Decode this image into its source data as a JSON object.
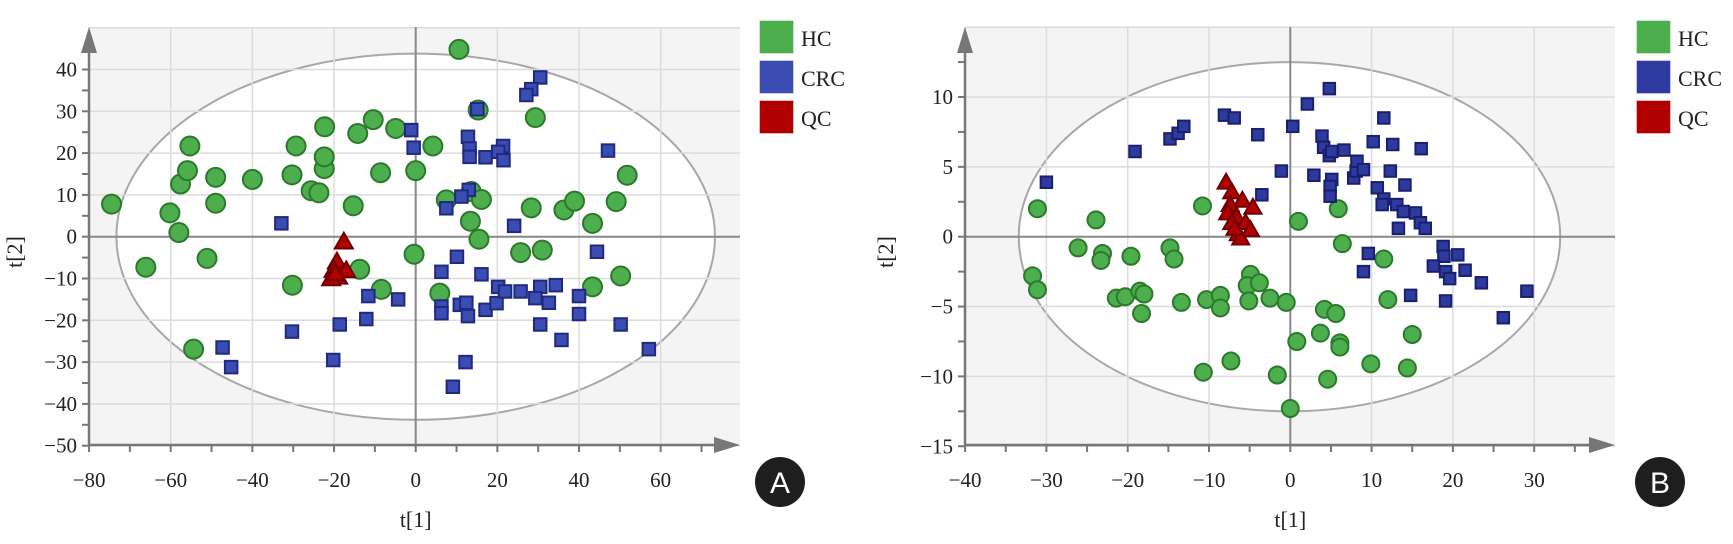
{
  "chart_data": [
    {
      "type": "scatter",
      "panel": "A",
      "xlabel": "t[1]",
      "ylabel": "t[2]",
      "xlim": [
        -80,
        80
      ],
      "ylim": [
        -50,
        50
      ],
      "xticks": [
        -80,
        -60,
        -40,
        -20,
        0,
        20,
        40,
        60
      ],
      "yticks": [
        -50,
        -40,
        -30,
        -20,
        -10,
        0,
        10,
        20,
        30,
        40
      ],
      "grid": true,
      "legend_position": "right-top",
      "ellipse": {
        "center": [
          0,
          0
        ],
        "radii": [
          73.3,
          43.8
        ]
      },
      "series": [
        {
          "name": "HC",
          "marker": "circle",
          "color": "#4cae4c",
          "stroke": "#2b7a2b",
          "points": [
            [
              -74.5,
              7.8
            ],
            [
              -66.1,
              -7.3
            ],
            [
              -60.2,
              5.7
            ],
            [
              -58,
              1
            ],
            [
              -57.6,
              12.6
            ],
            [
              -55.9,
              15.8
            ],
            [
              -55.3,
              21.7
            ],
            [
              -54.4,
              -26.9
            ],
            [
              -51.1,
              -5.2
            ],
            [
              -49,
              14.2
            ],
            [
              -49,
              8
            ],
            [
              -40,
              13.7
            ],
            [
              -30.3,
              14.8
            ],
            [
              -30.2,
              -11.6
            ],
            [
              -29.3,
              21.7
            ],
            [
              -25.6,
              11
            ],
            [
              -23.7,
              10.5
            ],
            [
              -22.4,
              16.3
            ],
            [
              -22.4,
              19.1
            ],
            [
              -22.3,
              26.3
            ],
            [
              -15.3,
              7.4
            ],
            [
              -14.2,
              24.7
            ],
            [
              -13.7,
              -7.8
            ],
            [
              -10.4,
              28
            ],
            [
              -8.6,
              15.3
            ],
            [
              -8.4,
              -12.6
            ],
            [
              10.6,
              44.8
            ],
            [
              -4.9,
              25.9
            ],
            [
              4.2,
              21.7
            ],
            [
              0,
              15.8
            ],
            [
              15.3,
              30.3
            ],
            [
              29.3,
              28.5
            ],
            [
              51.8,
              14.7
            ],
            [
              7.5,
              8.8
            ],
            [
              13.6,
              10.8
            ],
            [
              16.1,
              8.9
            ],
            [
              28.3,
              6.9
            ],
            [
              36.3,
              6.4
            ],
            [
              38.9,
              8.5
            ],
            [
              49.1,
              8.4
            ],
            [
              13.4,
              3.7
            ],
            [
              43.3,
              3.2
            ],
            [
              15.5,
              -0.6
            ],
            [
              -0.4,
              -4.2
            ],
            [
              25.7,
              -3.8
            ],
            [
              31,
              -3.2
            ],
            [
              5.9,
              -13.5
            ],
            [
              43.3,
              -12
            ],
            [
              50.2,
              -9.4
            ]
          ]
        },
        {
          "name": "CRC",
          "marker": "square",
          "color": "#3b4db3",
          "stroke": "#1f2a7e",
          "points": [
            [
              -32.9,
              3.2
            ],
            [
              -11.6,
              -14.2
            ],
            [
              -12.1,
              -19.7
            ],
            [
              -18.6,
              -21
            ],
            [
              -30.3,
              -22.7
            ],
            [
              -47.3,
              -26.5
            ],
            [
              -45.2,
              -31.2
            ],
            [
              -20.2,
              -29.5
            ],
            [
              30.5,
              38.1
            ],
            [
              28.3,
              35.3
            ],
            [
              27.1,
              33.9
            ],
            [
              15.1,
              30.5
            ],
            [
              -1.1,
              25.5
            ],
            [
              -0.5,
              21.3
            ],
            [
              12.8,
              23.9
            ],
            [
              13.2,
              21.1
            ],
            [
              13.2,
              19.1
            ],
            [
              17.1,
              19
            ],
            [
              21.4,
              21.7
            ],
            [
              20.2,
              20.3
            ],
            [
              21.5,
              18.3
            ],
            [
              47.1,
              20.6
            ],
            [
              13,
              11.2
            ],
            [
              11.2,
              9.6
            ],
            [
              7.5,
              6.8
            ],
            [
              24.1,
              2.6
            ],
            [
              44.4,
              -3.6
            ],
            [
              10.1,
              -4.8
            ],
            [
              6.3,
              -8.4
            ],
            [
              16.1,
              -9
            ],
            [
              -4.3,
              -15
            ],
            [
              6.3,
              -16.7
            ],
            [
              6.3,
              -18.3
            ],
            [
              10.8,
              -16.3
            ],
            [
              12.4,
              -15.8
            ],
            [
              12.8,
              -19
            ],
            [
              17.1,
              -17.5
            ],
            [
              19.8,
              -15.9
            ],
            [
              20.2,
              -12
            ],
            [
              21.9,
              -13.1
            ],
            [
              25.7,
              -13.1
            ],
            [
              30.5,
              -12
            ],
            [
              29.3,
              -14.7
            ],
            [
              32.6,
              -15.8
            ],
            [
              34.3,
              -11.6
            ],
            [
              40,
              -14.2
            ],
            [
              40,
              -18.5
            ],
            [
              30.5,
              -21
            ],
            [
              50.2,
              -21
            ],
            [
              35.7,
              -24.7
            ],
            [
              57.1,
              -26.9
            ],
            [
              12.2,
              -30
            ],
            [
              9.1,
              -35.9
            ]
          ]
        },
        {
          "name": "QC",
          "marker": "triangle",
          "color": "#b00000",
          "stroke": "#700000",
          "points": [
            [
              -17.6,
              -1.2
            ],
            [
              -19.3,
              -6
            ],
            [
              -20.1,
              -8
            ],
            [
              -17,
              -8.1
            ],
            [
              -19,
              -9.6
            ],
            [
              -20.7,
              -10
            ],
            [
              -19.6,
              -8.8
            ]
          ]
        }
      ]
    },
    {
      "type": "scatter",
      "panel": "B",
      "xlabel": "t[1]",
      "ylabel": "t[2]",
      "xlim": [
        -40,
        40
      ],
      "ylim": [
        -15,
        15
      ],
      "xticks": [
        -40,
        -30,
        -20,
        -10,
        0,
        10,
        20,
        30
      ],
      "yticks": [
        -15,
        -10,
        -5,
        0,
        5,
        10
      ],
      "grid": true,
      "legend_position": "right-top",
      "ellipse": {
        "center": [
          -0.1,
          0
        ],
        "radii": [
          33.3,
          12.5
        ]
      },
      "series": [
        {
          "name": "HC",
          "marker": "circle",
          "color": "#4cae4c",
          "stroke": "#2b7a2b",
          "points": [
            [
              -31.1,
              2
            ],
            [
              -31.7,
              -2.8
            ],
            [
              -31.1,
              -3.8
            ],
            [
              -23.9,
              1.2
            ],
            [
              -26.1,
              -0.8
            ],
            [
              -23.1,
              -1.2
            ],
            [
              -23.3,
              -1.7
            ],
            [
              -19.6,
              -1.4
            ],
            [
              -21.4,
              -4.4
            ],
            [
              -20.3,
              -4.3
            ],
            [
              -18.5,
              -3.9
            ],
            [
              -18,
              -4.1
            ],
            [
              -18.3,
              -5.5
            ],
            [
              -10.8,
              2.2
            ],
            [
              -14.8,
              -0.8
            ],
            [
              -14.3,
              -1.6
            ],
            [
              -13.4,
              -4.7
            ],
            [
              -10.3,
              -4.5
            ],
            [
              -8.6,
              -4.2
            ],
            [
              -8.6,
              -5.1
            ],
            [
              -4.9,
              -2.7
            ],
            [
              -5.3,
              -3.5
            ],
            [
              -3.8,
              -3.3
            ],
            [
              -5.1,
              -4.6
            ],
            [
              -2.5,
              -4.4
            ],
            [
              -0.5,
              -4.7
            ],
            [
              1,
              1.1
            ],
            [
              5.9,
              2
            ],
            [
              6.4,
              -0.5
            ],
            [
              11.5,
              -1.6
            ],
            [
              12,
              -4.5
            ],
            [
              4.2,
              -5.2
            ],
            [
              5.6,
              -5.5
            ],
            [
              3.7,
              -6.9
            ],
            [
              6.1,
              -7.6
            ],
            [
              6.1,
              -7.9
            ],
            [
              15,
              -7
            ],
            [
              0.8,
              -7.5
            ],
            [
              -7.3,
              -8.9
            ],
            [
              -10.7,
              -9.7
            ],
            [
              -1.6,
              -9.9
            ],
            [
              4.6,
              -10.2
            ],
            [
              9.9,
              -9.1
            ],
            [
              14.4,
              -9.4
            ],
            [
              0,
              -12.3
            ]
          ]
        },
        {
          "name": "CRC",
          "marker": "square",
          "color": "#2f3a9e",
          "stroke": "#18206e",
          "points": [
            [
              -30,
              3.9
            ],
            [
              -19.1,
              6.1
            ],
            [
              -14.8,
              7
            ],
            [
              -13.8,
              7.4
            ],
            [
              -13.1,
              7.9
            ],
            [
              -8.1,
              8.7
            ],
            [
              -6.9,
              8.5
            ],
            [
              -4,
              7.3
            ],
            [
              -3.5,
              3
            ],
            [
              -1.1,
              4.7
            ],
            [
              0.3,
              7.9
            ],
            [
              2.1,
              9.5
            ],
            [
              4.8,
              10.6
            ],
            [
              2.9,
              4.4
            ],
            [
              3.9,
              7.2
            ],
            [
              4.1,
              6.4
            ],
            [
              4.8,
              5.8
            ],
            [
              5.1,
              6.1
            ],
            [
              6.6,
              6.2
            ],
            [
              5.1,
              4.1
            ],
            [
              4.9,
              3.6
            ],
            [
              4.9,
              2.9
            ],
            [
              7.8,
              4.2
            ],
            [
              8.1,
              4.7
            ],
            [
              8.2,
              5.4
            ],
            [
              9,
              4.8
            ],
            [
              10.2,
              6.8
            ],
            [
              11.5,
              8.5
            ],
            [
              12.6,
              6.6
            ],
            [
              12.3,
              4.7
            ],
            [
              16.1,
              6.3
            ],
            [
              10.7,
              3.5
            ],
            [
              11.5,
              2.7
            ],
            [
              11.3,
              2.3
            ],
            [
              13.1,
              2.3
            ],
            [
              14.1,
              3.7
            ],
            [
              13.9,
              1.8
            ],
            [
              15.4,
              1.7
            ],
            [
              16,
              1
            ],
            [
              16.6,
              0.6
            ],
            [
              13.3,
              0.6
            ],
            [
              9.6,
              -1.2
            ],
            [
              9,
              -2.5
            ],
            [
              18.8,
              -0.7
            ],
            [
              18.9,
              -1.4
            ],
            [
              20.6,
              -1.3
            ],
            [
              17.6,
              -2.1
            ],
            [
              19.1,
              -2.5
            ],
            [
              19.6,
              -3
            ],
            [
              21.5,
              -2.4
            ],
            [
              14.8,
              -4.2
            ],
            [
              19.1,
              -4.6
            ],
            [
              23.5,
              -3.3
            ],
            [
              29.1,
              -3.9
            ],
            [
              26.2,
              -5.8
            ]
          ]
        },
        {
          "name": "QC",
          "marker": "triangle",
          "color": "#b00000",
          "stroke": "#700000",
          "points": [
            [
              -7.9,
              3.9
            ],
            [
              -7.2,
              3.2
            ],
            [
              -5.9,
              2.6
            ],
            [
              -4.6,
              2.1
            ],
            [
              -7.4,
              2.3
            ],
            [
              -7.7,
              1.7
            ],
            [
              -6.6,
              1.4
            ],
            [
              -7.2,
              1
            ],
            [
              -5.5,
              1
            ],
            [
              -4.9,
              0.5
            ],
            [
              -6.4,
              0.2
            ],
            [
              -6.1,
              -0.1
            ],
            [
              -6.8,
              0.6
            ]
          ]
        }
      ]
    }
  ]
}
